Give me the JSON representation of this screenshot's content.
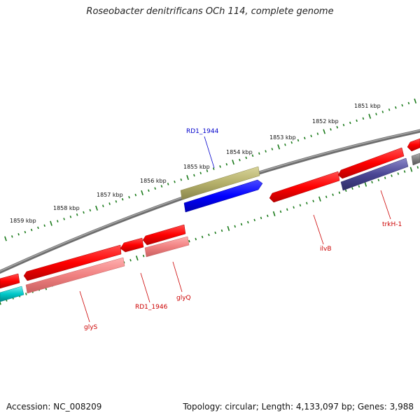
{
  "title": "Roseobacter denitrificans OCh 114, complete genome",
  "accession_text": "Accession: NC_008209",
  "stats_text": "Topology: circular; Length: 4,133,097 bp; Genes: 3,988",
  "ruler_labels": [
    "1851 kbp",
    "1852 kbp",
    "1853 kbp",
    "1854 kbp",
    "1855 kbp",
    "1856 kbp",
    "1857 kbp",
    "1858 kbp",
    "1859 kbp"
  ],
  "gene_labels": {
    "rd1_1944": "RD1_1944",
    "glys": "glyS",
    "rd1_1946": "RD1_1946",
    "glyq": "glyQ",
    "ilvb": "ilvB",
    "trkh1": "trkH-1"
  },
  "colors": {
    "forward_cds": "#ff0000",
    "reverse_cds": "#ff0000",
    "rna": "#f08080",
    "trkh_homolog": "#4a4694",
    "other_feature": "#b5b06a",
    "blue_feature": "#0000ff",
    "cyan_feature": "#00c8c8",
    "backbone": "#808080",
    "ruler_ticks": "#1a7a1a",
    "label_red": "#cc0000",
    "label_blue": "#0000cc"
  }
}
